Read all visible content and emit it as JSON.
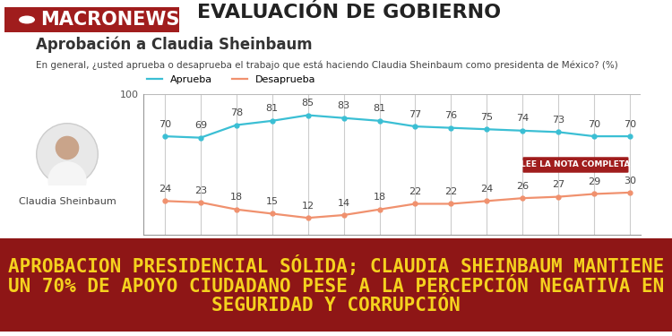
{
  "header": {
    "section": "EVALUACIÓN DE GOBIERNO",
    "logo": "MACRONEWS"
  },
  "chart_data": {
    "type": "line",
    "title": "Aprobación a Claudia Sheinbaum",
    "subtitle": "En general, ¿usted aprueba o desaprueba el trabajo que está haciendo Claudia Sheinbaum como presidenta de México? (%)",
    "categories": [
      null,
      null,
      null,
      null,
      null,
      null,
      null,
      null,
      null,
      null,
      null,
      null,
      null,
      null
    ],
    "series": [
      {
        "name": "Aprueba",
        "color": "#3bbfd4",
        "marker": "o",
        "values": [
          70,
          69,
          78,
          81,
          85,
          83,
          81,
          77,
          76,
          75,
          74,
          73,
          70,
          70
        ]
      },
      {
        "name": "Desaprueba",
        "color": "#f0916e",
        "marker": "o",
        "values": [
          24,
          23,
          18,
          15,
          12,
          14,
          18,
          22,
          22,
          24,
          26,
          27,
          29,
          30
        ]
      }
    ],
    "ylim": [
      0,
      100
    ],
    "yticks": [
      100
    ],
    "grid": true,
    "legend": "upper left",
    "data_labels": true
  },
  "photo_caption": "Claudia Sheinbaum",
  "button": "LEE LA NOTA COMPLETA",
  "banner": "APROBACION PRESIDENCIAL SÓLIDA; CLAUDIA SHEINBAUM MANTIENE UN 70% DE APOYO CIUDADANO PESE A LA PERCEPCIÓN NEGATIVA EN SEGURIDAD Y CORRUPCIÓN"
}
